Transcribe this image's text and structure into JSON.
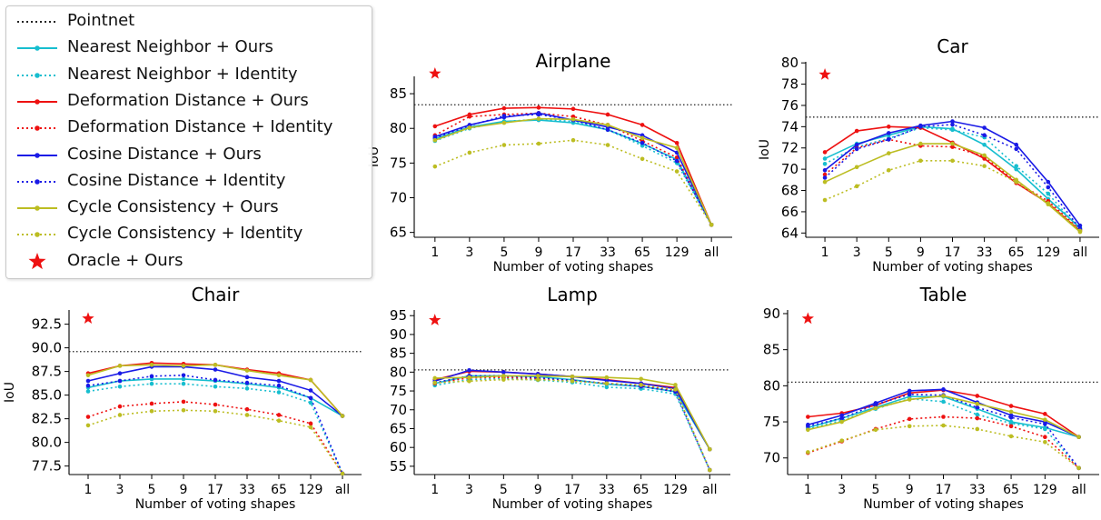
{
  "colors": {
    "pointnet": "#222222",
    "nearest_neighbor": "#17becf",
    "deformation_distance": "#ee1111",
    "cosine_distance": "#1a1ae6",
    "cycle_consistency": "#bcbd22",
    "oracle": "#ee1111"
  },
  "legend": [
    {
      "label": "Pointnet",
      "color": "#222222",
      "style": "dotted",
      "marker": "none"
    },
    {
      "label": "Nearest Neighbor + Ours",
      "color": "#17becf",
      "style": "solid",
      "marker": "dot"
    },
    {
      "label": "Nearest Neighbor + Identity",
      "color": "#17becf",
      "style": "dotted",
      "marker": "dot"
    },
    {
      "label": "Deformation Distance + Ours",
      "color": "#ee1111",
      "style": "solid",
      "marker": "dot"
    },
    {
      "label": "Deformation Distance + Identity",
      "color": "#ee1111",
      "style": "dotted",
      "marker": "dot"
    },
    {
      "label": "Cosine Distance + Ours",
      "color": "#1a1ae6",
      "style": "solid",
      "marker": "dot"
    },
    {
      "label": "Cosine Distance + Identity",
      "color": "#1a1ae6",
      "style": "dotted",
      "marker": "dot"
    },
    {
      "label": "Cycle Consistency + Ours",
      "color": "#bcbd22",
      "style": "solid",
      "marker": "dot"
    },
    {
      "label": "Cycle Consistency + Identity",
      "color": "#bcbd22",
      "style": "dotted",
      "marker": "dot"
    },
    {
      "label": "Oracle + Ours",
      "color": "#ee1111",
      "style": "none",
      "marker": "star"
    }
  ],
  "chart_data": [
    {
      "type": "line",
      "title": "Airplane",
      "xlabel": "Number of voting shapes",
      "ylabel": "IoU",
      "categories": [
        "1",
        "3",
        "5",
        "9",
        "17",
        "33",
        "65",
        "129",
        "all"
      ],
      "ylim": [
        64.3,
        87.5
      ],
      "yticks": [
        65,
        70,
        75,
        80,
        85
      ],
      "ytick_labels": [
        "65",
        "70",
        "75",
        "80",
        "85"
      ],
      "pointnet": 83.4,
      "oracle": {
        "x": "1",
        "y": 87.9
      },
      "series": [
        {
          "name": "Nearest Neighbor + Ours",
          "color": "#17becf",
          "style": "solid",
          "values": [
            78.5,
            80.2,
            81.0,
            81.2,
            80.8,
            79.8,
            77.8,
            75.5,
            66.1
          ]
        },
        {
          "name": "Nearest Neighbor + Identity",
          "color": "#17becf",
          "style": "dotted",
          "values": [
            78.2,
            80.0,
            81.0,
            81.3,
            81.0,
            79.8,
            77.5,
            75.0,
            66.1
          ]
        },
        {
          "name": "Deformation Distance + Ours",
          "color": "#ee1111",
          "style": "solid",
          "values": [
            80.3,
            82.0,
            82.9,
            83.0,
            82.8,
            82.0,
            80.5,
            77.9,
            66.1
          ]
        },
        {
          "name": "Deformation Distance + Identity",
          "color": "#ee1111",
          "style": "dotted",
          "values": [
            79.0,
            81.7,
            82.0,
            82.2,
            81.7,
            80.5,
            78.2,
            75.8,
            66.1
          ]
        },
        {
          "name": "Cosine Distance + Ours",
          "color": "#1a1ae6",
          "style": "solid",
          "values": [
            78.8,
            80.5,
            81.6,
            82.2,
            81.2,
            80.2,
            79.0,
            76.5,
            66.1
          ]
        },
        {
          "name": "Cosine Distance + Identity",
          "color": "#1a1ae6",
          "style": "dotted",
          "values": [
            78.6,
            80.4,
            81.8,
            82.0,
            81.2,
            79.8,
            77.9,
            75.3,
            66.1
          ]
        },
        {
          "name": "Cycle Consistency + Ours",
          "color": "#bcbd22",
          "style": "solid",
          "values": [
            78.3,
            80.1,
            80.8,
            81.4,
            81.3,
            80.5,
            78.6,
            77.2,
            66.1
          ]
        },
        {
          "name": "Cycle Consistency + Identity",
          "color": "#bcbd22",
          "style": "dotted",
          "values": [
            74.5,
            76.5,
            77.6,
            77.8,
            78.3,
            77.6,
            75.6,
            73.8,
            66.1
          ]
        }
      ]
    },
    {
      "type": "line",
      "title": "Car",
      "xlabel": "Number of voting shapes",
      "ylabel": "IoU",
      "categories": [
        "1",
        "3",
        "5",
        "9",
        "17",
        "33",
        "65",
        "129",
        "all"
      ],
      "ylim": [
        63.6,
        80.1
      ],
      "yticks": [
        64,
        66,
        68,
        70,
        72,
        74,
        76,
        78,
        80
      ],
      "ytick_labels": [
        "64",
        "66",
        "68",
        "70",
        "72",
        "74",
        "76",
        "78",
        "80"
      ],
      "pointnet": 74.9,
      "oracle": {
        "x": "1",
        "y": 78.9
      },
      "series": [
        {
          "name": "Nearest Neighbor + Ours",
          "color": "#17becf",
          "style": "solid",
          "values": [
            71.0,
            72.4,
            73.2,
            74.0,
            73.8,
            72.3,
            70.0,
            67.2,
            64.5
          ]
        },
        {
          "name": "Nearest Neighbor + Identity",
          "color": "#17becf",
          "style": "dotted",
          "values": [
            70.5,
            72.1,
            72.9,
            73.9,
            73.7,
            73.0,
            70.3,
            67.7,
            64.3
          ]
        },
        {
          "name": "Deformation Distance + Ours",
          "color": "#ee1111",
          "style": "solid",
          "values": [
            71.6,
            73.6,
            74.0,
            73.9,
            72.5,
            71.0,
            68.7,
            66.8,
            64.2
          ]
        },
        {
          "name": "Deformation Distance + Identity",
          "color": "#ee1111",
          "style": "dotted",
          "values": [
            69.5,
            72.0,
            72.8,
            72.2,
            72.1,
            71.2,
            68.8,
            67.0,
            64.3
          ]
        },
        {
          "name": "Cosine Distance + Ours",
          "color": "#1a1ae6",
          "style": "solid",
          "values": [
            69.9,
            72.3,
            73.4,
            74.1,
            74.5,
            73.9,
            72.3,
            68.8,
            64.7
          ]
        },
        {
          "name": "Cosine Distance + Identity",
          "color": "#1a1ae6",
          "style": "dotted",
          "values": [
            69.2,
            71.9,
            72.8,
            74.0,
            74.2,
            73.2,
            71.9,
            68.3,
            64.4
          ]
        },
        {
          "name": "Cycle Consistency + Ours",
          "color": "#bcbd22",
          "style": "solid",
          "values": [
            68.8,
            70.2,
            71.5,
            72.4,
            72.4,
            71.3,
            69.0,
            66.7,
            64.1
          ]
        },
        {
          "name": "Cycle Consistency + Identity",
          "color": "#bcbd22",
          "style": "dotted",
          "values": [
            67.1,
            68.4,
            69.9,
            70.8,
            70.8,
            70.3,
            68.8,
            66.8,
            64.2
          ]
        }
      ]
    },
    {
      "type": "line",
      "title": "Chair",
      "xlabel": "Number of voting shapes",
      "ylabel": "IoU",
      "categories": [
        "1",
        "3",
        "5",
        "9",
        "17",
        "33",
        "65",
        "129",
        "all"
      ],
      "ylim": [
        76.6,
        94.0
      ],
      "yticks": [
        77.5,
        80.0,
        82.5,
        85.0,
        87.5,
        90.0,
        92.5
      ],
      "ytick_labels": [
        "77.5",
        "80.0",
        "82.5",
        "85.0",
        "87.5",
        "90.0",
        "92.5"
      ],
      "pointnet": 89.6,
      "oracle": {
        "x": "1",
        "y": 93.1
      },
      "series": [
        {
          "name": "Nearest Neighbor + Ours",
          "color": "#17becf",
          "style": "solid",
          "values": [
            85.8,
            86.5,
            86.7,
            86.7,
            86.5,
            86.2,
            85.8,
            84.7,
            82.8
          ]
        },
        {
          "name": "Nearest Neighbor + Identity",
          "color": "#17becf",
          "style": "dotted",
          "values": [
            85.4,
            85.9,
            86.2,
            86.2,
            85.9,
            85.7,
            85.3,
            84.2,
            76.7
          ]
        },
        {
          "name": "Deformation Distance + Ours",
          "color": "#ee1111",
          "style": "solid",
          "values": [
            87.3,
            88.1,
            88.4,
            88.3,
            88.2,
            87.7,
            87.3,
            86.6,
            82.8
          ]
        },
        {
          "name": "Deformation Distance + Identity",
          "color": "#ee1111",
          "style": "dotted",
          "values": [
            82.7,
            83.8,
            84.1,
            84.3,
            84.0,
            83.5,
            82.9,
            82.0,
            76.7
          ]
        },
        {
          "name": "Cosine Distance + Ours",
          "color": "#1a1ae6",
          "style": "solid",
          "values": [
            86.5,
            87.3,
            88.0,
            88.0,
            87.7,
            86.9,
            86.5,
            85.5,
            82.8
          ]
        },
        {
          "name": "Cosine Distance + Identity",
          "color": "#1a1ae6",
          "style": "dotted",
          "values": [
            86.0,
            86.5,
            87.0,
            87.1,
            86.6,
            86.3,
            86.0,
            84.7,
            76.7
          ]
        },
        {
          "name": "Cycle Consistency + Ours",
          "color": "#bcbd22",
          "style": "solid",
          "values": [
            87.1,
            88.1,
            88.2,
            88.1,
            88.2,
            87.6,
            87.1,
            86.6,
            82.8
          ]
        },
        {
          "name": "Cycle Consistency + Identity",
          "color": "#bcbd22",
          "style": "dotted",
          "values": [
            81.8,
            82.9,
            83.3,
            83.4,
            83.3,
            82.9,
            82.3,
            81.6,
            76.7
          ]
        }
      ]
    },
    {
      "type": "line",
      "title": "Lamp",
      "xlabel": "Number of voting shapes",
      "ylabel": "",
      "categories": [
        "1",
        "3",
        "5",
        "9",
        "17",
        "33",
        "65",
        "129",
        "all"
      ],
      "ylim": [
        52.8,
        96.5
      ],
      "yticks": [
        55,
        60,
        65,
        70,
        75,
        80,
        85,
        90,
        95
      ],
      "ytick_labels": [
        "55",
        "60",
        "65",
        "70",
        "75",
        "80",
        "85",
        "90",
        "95"
      ],
      "pointnet": 80.6,
      "oracle": {
        "x": "1",
        "y": 93.8
      },
      "series": [
        {
          "name": "Nearest Neighbor + Ours",
          "color": "#17becf",
          "style": "solid",
          "values": [
            77.0,
            79.0,
            79.0,
            78.8,
            78.0,
            76.8,
            76.2,
            74.8,
            59.5
          ]
        },
        {
          "name": "Nearest Neighbor + Identity",
          "color": "#17becf",
          "style": "dotted",
          "values": [
            76.5,
            78.0,
            78.3,
            77.9,
            77.3,
            76.0,
            75.6,
            74.2,
            54.0
          ]
        },
        {
          "name": "Deformation Distance + Ours",
          "color": "#ee1111",
          "style": "solid",
          "values": [
            78.0,
            80.2,
            80.0,
            79.5,
            78.8,
            78.0,
            77.0,
            75.9,
            59.5
          ]
        },
        {
          "name": "Deformation Distance + Identity",
          "color": "#ee1111",
          "style": "dotted",
          "values": [
            77.0,
            78.5,
            78.6,
            78.3,
            77.8,
            77.0,
            76.4,
            75.0,
            54.0
          ]
        },
        {
          "name": "Cosine Distance + Ours",
          "color": "#1a1ae6",
          "style": "solid",
          "values": [
            77.6,
            80.5,
            80.0,
            79.5,
            78.8,
            77.8,
            77.0,
            75.6,
            59.5
          ]
        },
        {
          "name": "Cosine Distance + Identity",
          "color": "#1a1ae6",
          "style": "dotted",
          "values": [
            77.2,
            79.0,
            79.0,
            78.5,
            77.8,
            77.0,
            76.2,
            74.8,
            54.0
          ]
        },
        {
          "name": "Cycle Consistency + Ours",
          "color": "#bcbd22",
          "style": "solid",
          "values": [
            78.4,
            78.6,
            79.0,
            79.0,
            78.8,
            78.6,
            78.2,
            76.6,
            59.5
          ]
        },
        {
          "name": "Cycle Consistency + Identity",
          "color": "#bcbd22",
          "style": "dotted",
          "values": [
            77.2,
            77.6,
            78.0,
            78.0,
            77.6,
            77.0,
            76.6,
            75.4,
            54.0
          ]
        }
      ]
    },
    {
      "type": "line",
      "title": "Table",
      "xlabel": "Number of voting shapes",
      "ylabel": "",
      "categories": [
        "1",
        "3",
        "5",
        "9",
        "17",
        "33",
        "65",
        "129",
        "all"
      ],
      "ylim": [
        67.7,
        90.5
      ],
      "yticks": [
        70,
        75,
        80,
        85,
        90
      ],
      "ytick_labels": [
        "70",
        "75",
        "80",
        "85",
        "90"
      ],
      "pointnet": 80.5,
      "oracle": {
        "x": "1",
        "y": 89.3
      },
      "series": [
        {
          "name": "Nearest Neighbor + Ours",
          "color": "#17becf",
          "style": "solid",
          "values": [
            74.2,
            75.5,
            77.0,
            78.5,
            78.5,
            76.8,
            75.0,
            74.2,
            72.9
          ]
        },
        {
          "name": "Nearest Neighbor + Identity",
          "color": "#17becf",
          "style": "dotted",
          "values": [
            74.0,
            75.2,
            76.8,
            78.2,
            77.8,
            76.0,
            74.8,
            74.0,
            68.6
          ]
        },
        {
          "name": "Deformation Distance + Ours",
          "color": "#ee1111",
          "style": "solid",
          "values": [
            75.7,
            76.2,
            77.3,
            79.0,
            79.4,
            78.6,
            77.2,
            76.1,
            72.9
          ]
        },
        {
          "name": "Deformation Distance + Identity",
          "color": "#ee1111",
          "style": "dotted",
          "values": [
            70.7,
            72.3,
            74.0,
            75.4,
            75.7,
            75.5,
            74.4,
            72.9,
            68.6
          ]
        },
        {
          "name": "Cosine Distance + Ours",
          "color": "#1a1ae6",
          "style": "solid",
          "values": [
            74.6,
            75.9,
            77.6,
            79.3,
            79.5,
            77.7,
            75.9,
            75.0,
            72.9
          ]
        },
        {
          "name": "Cosine Distance + Identity",
          "color": "#1a1ae6",
          "style": "dotted",
          "values": [
            74.4,
            75.5,
            77.4,
            78.8,
            78.7,
            77.0,
            75.6,
            74.7,
            68.6
          ]
        },
        {
          "name": "Cycle Consistency + Ours",
          "color": "#bcbd22",
          "style": "solid",
          "values": [
            73.9,
            75.0,
            76.9,
            78.1,
            78.6,
            77.5,
            76.4,
            75.3,
            72.9
          ]
        },
        {
          "name": "Cycle Consistency + Identity",
          "color": "#bcbd22",
          "style": "dotted",
          "values": [
            70.8,
            72.4,
            73.9,
            74.4,
            74.5,
            74.0,
            73.0,
            72.2,
            68.6
          ]
        }
      ]
    }
  ]
}
